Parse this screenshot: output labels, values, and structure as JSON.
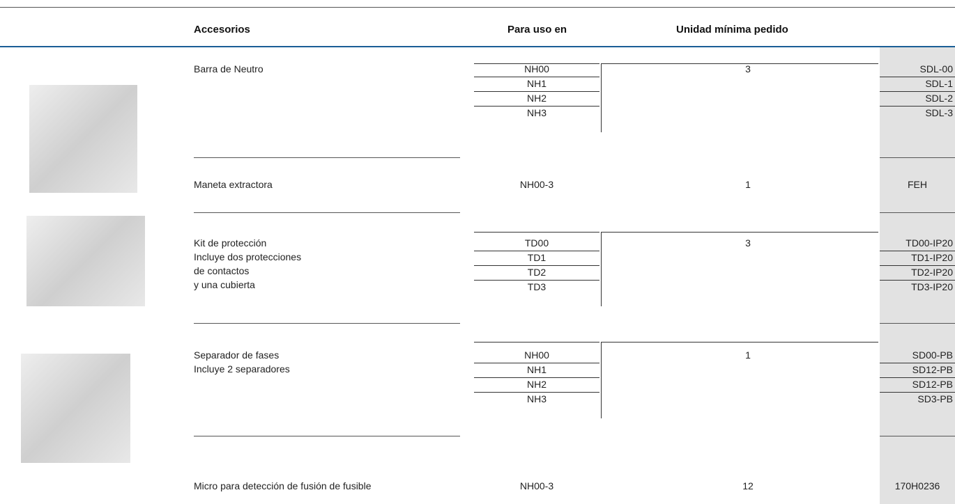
{
  "header": {
    "columns": [
      "Accesorios",
      "Para uso en",
      "Unidad mínima  pedido"
    ]
  },
  "rows": [
    {
      "description": [
        "Barra de Neutro"
      ],
      "use": [
        "NH00",
        "NH1",
        "NH2",
        "NH3"
      ],
      "min_order": "3",
      "codes": [
        "SDL-00",
        "SDL-1",
        "SDL-2",
        "SDL-3"
      ]
    },
    {
      "description": [
        "Maneta extractora"
      ],
      "use": [
        "NH00-3"
      ],
      "min_order": "1",
      "codes": [
        "FEH"
      ]
    },
    {
      "description": [
        "Kit de protección",
        "Incluye dos protecciones",
        "de contactos",
        "y una cubierta"
      ],
      "use": [
        "TD00",
        "TD1",
        "TD2",
        "TD3"
      ],
      "min_order": "3",
      "codes": [
        "TD00-IP20",
        "TD1-IP20",
        "TD2-IP20",
        "TD3-IP20"
      ]
    },
    {
      "description": [
        "Separador de fases",
        "Incluye 2 separadores"
      ],
      "use": [
        "NH00",
        "NH1",
        "NH2",
        "NH3"
      ],
      "min_order": "1",
      "codes": [
        "SD00-PB",
        "SD12-PB",
        "SD12-PB",
        "SD3-PB"
      ]
    },
    {
      "description": [
        "Micro para detección de fusión de fusible"
      ],
      "use": [
        "NH00-3"
      ],
      "min_order": "12",
      "codes": [
        "170H0236"
      ]
    }
  ]
}
